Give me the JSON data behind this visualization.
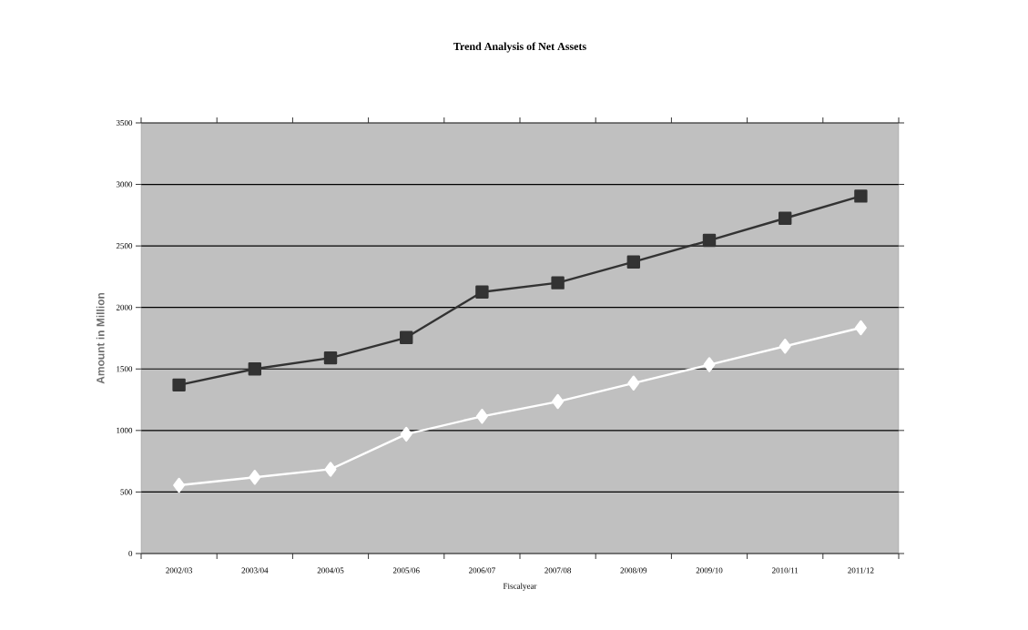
{
  "chart_data": {
    "type": "line",
    "title": "Trend Analysis of Net Assets",
    "xlabel": "Fiscalyear",
    "ylabel": "Amount in Million",
    "categories": [
      "2002/03",
      "2003/04",
      "2004/05",
      "2005/06",
      "2006/07",
      "2007/08",
      "2008/09",
      "2009/10",
      "2010/11",
      "2011/12"
    ],
    "series": [
      {
        "color": "#333333",
        "marker": "square",
        "values": [
          1370,
          1500,
          1590,
          1755,
          2125,
          2200,
          2370,
          2545,
          2725,
          2905
        ]
      },
      {
        "color": "#ffffff",
        "marker": "diamond",
        "values": [
          555,
          620,
          685,
          970,
          1115,
          1235,
          1385,
          1535,
          1685,
          1835
        ]
      }
    ],
    "ylim": [
      0,
      3500
    ],
    "yticks": [
      0,
      500,
      1000,
      1500,
      2000,
      2500,
      3000,
      3500
    ],
    "grid": "y"
  }
}
